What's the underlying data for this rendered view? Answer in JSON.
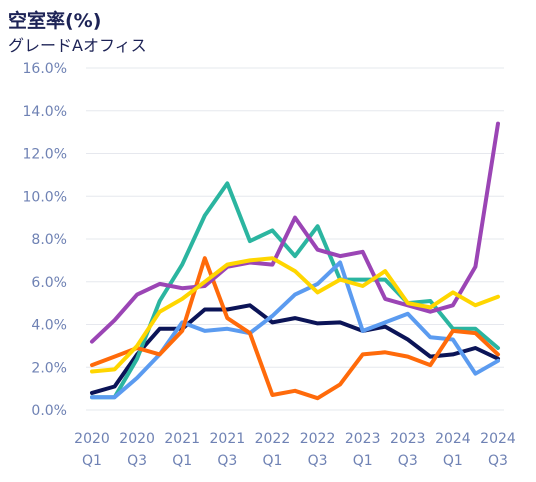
{
  "chart_data": {
    "type": "line",
    "title": "空室率(%)",
    "subtitle": "グレードAオフィス",
    "ylim": [
      0,
      16
    ],
    "yticks": [
      {
        "value": 0,
        "label": "0.0%"
      },
      {
        "value": 2,
        "label": "2.0%"
      },
      {
        "value": 4,
        "label": "4.0%"
      },
      {
        "value": 6,
        "label": "6.0%"
      },
      {
        "value": 8,
        "label": "8.0%"
      },
      {
        "value": 10,
        "label": "10.0%"
      },
      {
        "value": 12,
        "label": "12.0%"
      },
      {
        "value": 14,
        "label": "14.0%"
      },
      {
        "value": 16,
        "label": "16.0%"
      }
    ],
    "x": [
      "2020Q1",
      "2020Q2",
      "2020Q3",
      "2020Q4",
      "2021Q1",
      "2021Q2",
      "2021Q3",
      "2021Q4",
      "2022Q1",
      "2022Q2",
      "2022Q3",
      "2022Q4",
      "2023Q1",
      "2023Q2",
      "2023Q3",
      "2023Q4",
      "2024Q1",
      "2024Q2",
      "2024Q3"
    ],
    "xticks": [
      {
        "index": 0,
        "year": "2020",
        "quarter": "Q1"
      },
      {
        "index": 2,
        "year": "2020",
        "quarter": "Q3"
      },
      {
        "index": 4,
        "year": "2021",
        "quarter": "Q1"
      },
      {
        "index": 6,
        "year": "2021",
        "quarter": "Q3"
      },
      {
        "index": 8,
        "year": "2022",
        "quarter": "Q1"
      },
      {
        "index": 10,
        "year": "2022",
        "quarter": "Q3"
      },
      {
        "index": 12,
        "year": "2023",
        "quarter": "Q1"
      },
      {
        "index": 14,
        "year": "2023",
        "quarter": "Q3"
      },
      {
        "index": 16,
        "year": "2024",
        "quarter": "Q1"
      },
      {
        "index": 18,
        "year": "2024",
        "quarter": "Q3"
      }
    ],
    "grid": true,
    "series": [
      {
        "color": "#0b1457",
        "values": [
          0.8,
          1.1,
          2.6,
          3.8,
          3.8,
          4.7,
          4.7,
          4.9,
          4.1,
          4.3,
          4.05,
          4.1,
          3.7,
          3.9,
          3.3,
          2.5,
          2.6,
          2.9,
          2.4
        ]
      },
      {
        "color": "#2bb5a0",
        "values": [
          0.6,
          0.6,
          2.4,
          5.1,
          6.8,
          9.1,
          10.6,
          7.9,
          8.4,
          7.2,
          8.6,
          6.1,
          6.1,
          6.1,
          5.0,
          5.1,
          3.8,
          3.8,
          2.9
        ]
      },
      {
        "color": "#5b9bf0",
        "values": [
          0.6,
          0.6,
          1.5,
          2.6,
          4.1,
          3.7,
          3.8,
          3.6,
          4.4,
          5.4,
          5.9,
          6.9,
          3.7,
          4.1,
          4.5,
          3.4,
          3.3,
          1.7,
          2.3
        ]
      },
      {
        "color": "#ff6a0a",
        "values": [
          2.1,
          2.5,
          2.9,
          2.6,
          3.7,
          7.1,
          4.3,
          3.6,
          0.7,
          0.9,
          0.55,
          1.2,
          2.6,
          2.7,
          2.5,
          2.1,
          3.7,
          3.6,
          2.6
        ]
      },
      {
        "color": "#9b45b5",
        "values": [
          3.2,
          4.2,
          5.4,
          5.9,
          5.7,
          5.8,
          6.7,
          6.9,
          6.8,
          9.0,
          7.5,
          7.2,
          7.4,
          5.2,
          4.9,
          4.6,
          4.9,
          6.7,
          13.4
        ]
      },
      {
        "color": "#ffd600",
        "values": [
          1.8,
          1.9,
          3.0,
          4.6,
          5.2,
          6.0,
          6.8,
          7.0,
          7.1,
          6.5,
          5.5,
          6.1,
          5.8,
          6.5,
          5.0,
          4.8,
          5.5,
          4.9,
          5.3
        ]
      }
    ]
  }
}
